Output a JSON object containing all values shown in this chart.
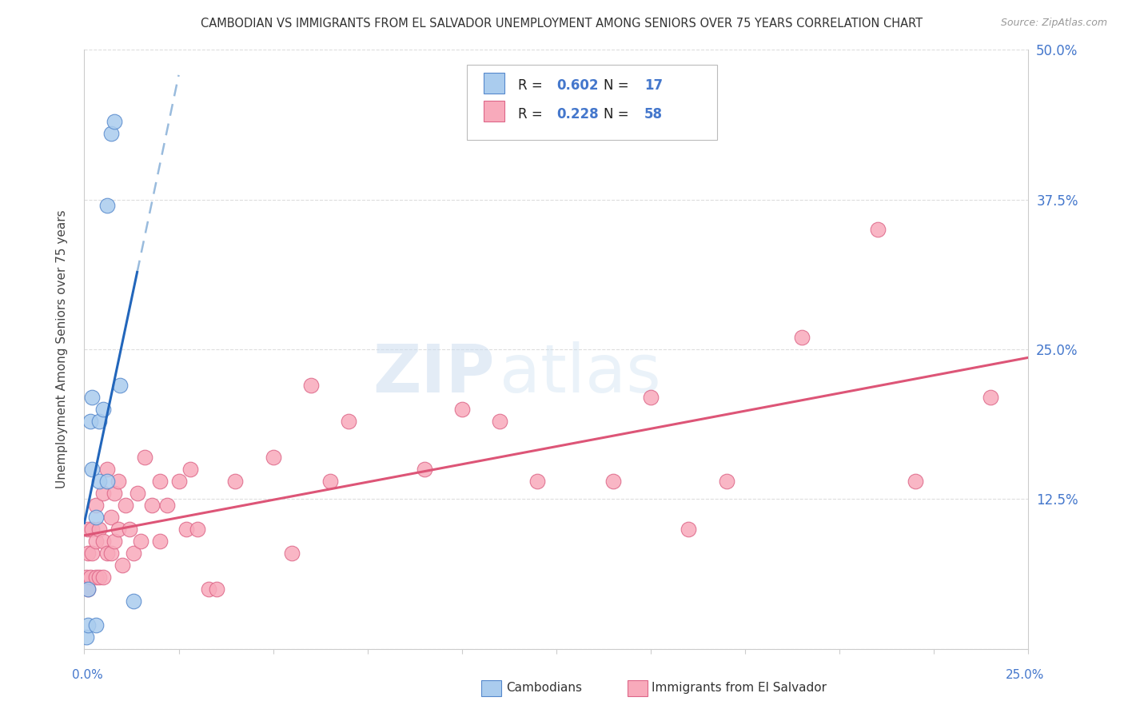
{
  "title": "CAMBODIAN VS IMMIGRANTS FROM EL SALVADOR UNEMPLOYMENT AMONG SENIORS OVER 75 YEARS CORRELATION CHART",
  "source": "Source: ZipAtlas.com",
  "ylabel": "Unemployment Among Seniors over 75 years",
  "ylim": [
    0.0,
    0.5
  ],
  "xlim": [
    0.0,
    0.25
  ],
  "y_tick_vals": [
    0.0,
    0.125,
    0.25,
    0.375,
    0.5
  ],
  "y_tick_labels_right": [
    "",
    "12.5%",
    "25.0%",
    "37.5%",
    "50.0%"
  ],
  "legend_r1": "0.602",
  "legend_n1": "17",
  "legend_r2": "0.228",
  "legend_n2": "58",
  "color_cambodian_fill": "#aaccee",
  "color_cambodian_edge": "#5588cc",
  "color_salvador_fill": "#f8aabb",
  "color_salvador_edge": "#dd6688",
  "color_trend_cambodian": "#2266bb",
  "color_trend_cambodian_dash": "#99bbdd",
  "color_trend_salvador": "#dd5577",
  "color_grid": "#dddddd",
  "color_spine": "#cccccc",
  "color_title": "#333333",
  "color_source": "#999999",
  "color_axis_blue": "#4477cc",
  "color_watermark": "#ddeeff",
  "cambodian_x": [
    0.0005,
    0.001,
    0.001,
    0.0015,
    0.002,
    0.002,
    0.003,
    0.003,
    0.004,
    0.004,
    0.005,
    0.006,
    0.006,
    0.007,
    0.008,
    0.0095,
    0.013
  ],
  "cambodian_y": [
    0.01,
    0.02,
    0.05,
    0.19,
    0.15,
    0.21,
    0.02,
    0.11,
    0.19,
    0.14,
    0.2,
    0.14,
    0.37,
    0.43,
    0.44,
    0.22,
    0.04
  ],
  "salvador_x": [
    0.0005,
    0.001,
    0.001,
    0.001,
    0.0015,
    0.002,
    0.002,
    0.003,
    0.003,
    0.003,
    0.004,
    0.004,
    0.005,
    0.005,
    0.005,
    0.006,
    0.006,
    0.007,
    0.007,
    0.008,
    0.008,
    0.009,
    0.009,
    0.01,
    0.011,
    0.012,
    0.013,
    0.014,
    0.015,
    0.016,
    0.018,
    0.02,
    0.02,
    0.022,
    0.025,
    0.027,
    0.028,
    0.03,
    0.033,
    0.035,
    0.04,
    0.05,
    0.055,
    0.06,
    0.065,
    0.07,
    0.09,
    0.1,
    0.11,
    0.12,
    0.14,
    0.15,
    0.16,
    0.17,
    0.19,
    0.21,
    0.22,
    0.24
  ],
  "salvador_y": [
    0.06,
    0.05,
    0.08,
    0.1,
    0.06,
    0.08,
    0.1,
    0.06,
    0.09,
    0.12,
    0.06,
    0.1,
    0.06,
    0.09,
    0.13,
    0.08,
    0.15,
    0.08,
    0.11,
    0.09,
    0.13,
    0.1,
    0.14,
    0.07,
    0.12,
    0.1,
    0.08,
    0.13,
    0.09,
    0.16,
    0.12,
    0.09,
    0.14,
    0.12,
    0.14,
    0.1,
    0.15,
    0.1,
    0.05,
    0.05,
    0.14,
    0.16,
    0.08,
    0.22,
    0.14,
    0.19,
    0.15,
    0.2,
    0.19,
    0.14,
    0.14,
    0.21,
    0.1,
    0.14,
    0.26,
    0.35,
    0.14,
    0.21
  ]
}
